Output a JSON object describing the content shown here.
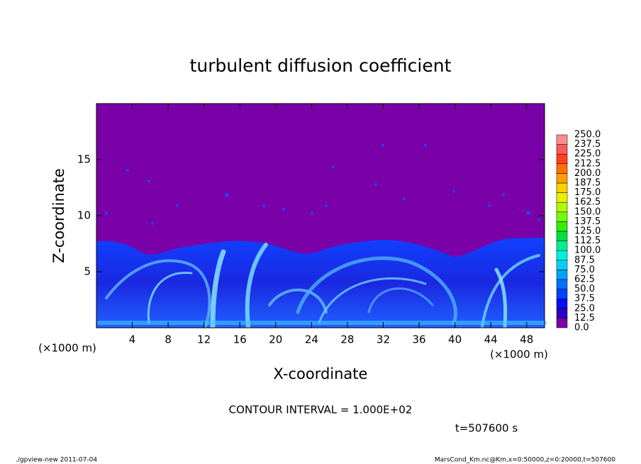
{
  "chart_data": {
    "type": "heatmap",
    "title": "turbulent diffusion coefficient",
    "x_label": "X-coordinate",
    "y_label": "Z-coordinate",
    "x_unit_label": "(×1000 m)",
    "y_unit_label": "(×1000 m)",
    "xlim": [
      0,
      50
    ],
    "ylim": [
      0,
      20
    ],
    "xticks": [
      4,
      8,
      12,
      16,
      20,
      24,
      28,
      32,
      36,
      40,
      44,
      48
    ],
    "yticks": [
      5,
      10,
      15
    ],
    "colorbar": {
      "levels": [
        {
          "value": 0,
          "label": "0.0"
        },
        {
          "value": 12.5,
          "label": "12.5"
        },
        {
          "value": 25,
          "label": "25.0"
        },
        {
          "value": 37.5,
          "label": "37.5"
        },
        {
          "value": 50,
          "label": "50.0"
        },
        {
          "value": 62.5,
          "label": "62.5"
        },
        {
          "value": 75,
          "label": "75.0"
        },
        {
          "value": 87.5,
          "label": "87.5"
        },
        {
          "value": 100,
          "label": "100.0"
        },
        {
          "value": 112.5,
          "label": "112.5"
        },
        {
          "value": 125,
          "label": "125.0"
        },
        {
          "value": 137.5,
          "label": "137.5"
        },
        {
          "value": 150,
          "label": "150.0"
        },
        {
          "value": 162.5,
          "label": "162.5"
        },
        {
          "value": 175,
          "label": "175.0"
        },
        {
          "value": 187.5,
          "label": "187.5"
        },
        {
          "value": 200,
          "label": "200.0"
        },
        {
          "value": 212.5,
          "label": "212.5"
        },
        {
          "value": 225,
          "label": "225.0"
        },
        {
          "value": 237.5,
          "label": "237.5"
        },
        {
          "value": 250,
          "label": "250.0"
        }
      ],
      "colors": [
        "#7a00a8",
        "#2a00c8",
        "#0010f0",
        "#0040ff",
        "#0070ff",
        "#00a0ff",
        "#00d0ff",
        "#00f0e0",
        "#00f090",
        "#00e040",
        "#30f000",
        "#70ff00",
        "#b0ff00",
        "#e8f000",
        "#ffd000",
        "#ffa000",
        "#ff7000",
        "#ff4020",
        "#ff5a5a",
        "#ff8c8c"
      ]
    },
    "contour_note": "CONTOUR INTERVAL = 1.000E+02",
    "time_label": "t=507600 s",
    "footer_left": "./gpview-new  2011-07-04",
    "footer_right": "MarsCond_Km.nc@Km,x=0:50000,z=0:20000,t=507600"
  }
}
